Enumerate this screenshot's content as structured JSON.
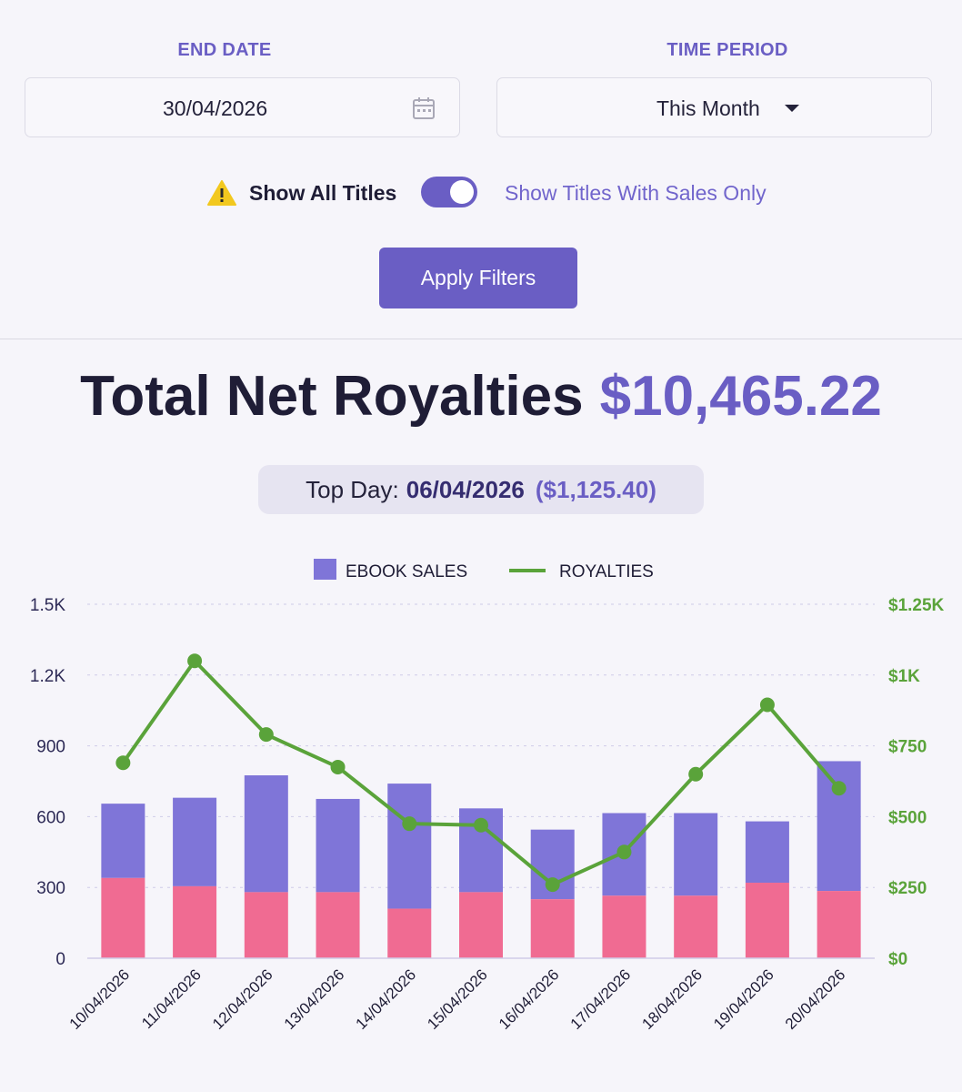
{
  "filters": {
    "end_date_label": "END DATE",
    "end_date_value": "30/04/2026",
    "time_period_label": "TIME PERIOD",
    "time_period_value": "This Month",
    "toggle_left_label": "Show All Titles",
    "toggle_right_label": "Show Titles With Sales Only",
    "toggle_on": true,
    "apply_label": "Apply Filters"
  },
  "summary": {
    "title": "Total Net Royalties",
    "amount": "$10,465.22",
    "top_day_label": "Top Day:",
    "top_day_date": "06/04/2026",
    "top_day_amount": "($1,125.40)"
  },
  "icons": {
    "date_field": "calendar-icon",
    "time_period": "caret-down-icon",
    "toggle_note": "warning-icon"
  },
  "colors": {
    "accent": "#6a5ec4",
    "ebook_bar": "#7f75d8",
    "paperback_bar": "#f06b92",
    "royalties_line": "#5aa33a"
  },
  "chart_data": {
    "type": "bar",
    "categories": [
      "10/04/2026",
      "11/04/2026",
      "12/04/2026",
      "13/04/2026",
      "14/04/2026",
      "15/04/2026",
      "16/04/2026",
      "17/04/2026",
      "18/04/2026",
      "19/04/2026",
      "20/04/2026"
    ],
    "series": [
      {
        "name": "",
        "type": "bar",
        "stack": "total",
        "axis": "left",
        "values": [
          340,
          305,
          280,
          280,
          210,
          280,
          250,
          265,
          265,
          320,
          285
        ]
      },
      {
        "name": "EBOOK SALES",
        "type": "bar",
        "stack": "total",
        "axis": "left",
        "values": [
          315,
          375,
          495,
          395,
          530,
          355,
          295,
          350,
          350,
          260,
          550
        ]
      },
      {
        "name": "ROYALTIES",
        "type": "line",
        "axis": "right",
        "values": [
          690,
          1050,
          790,
          675,
          475,
          470,
          260,
          375,
          650,
          895,
          600
        ]
      }
    ],
    "legend": [
      "EBOOK SALES",
      "ROYALTIES"
    ],
    "legend_position": "top-center",
    "y_left": {
      "ticks": [
        "0",
        "300",
        "600",
        "900",
        "1.2K",
        "1.5K"
      ],
      "ylim": [
        0,
        1500
      ]
    },
    "y_right": {
      "ticks": [
        "$0",
        "$250",
        "$500",
        "$750",
        "$1K",
        "$1.25K"
      ],
      "ylim": [
        0,
        1250
      ]
    },
    "grid": true
  }
}
